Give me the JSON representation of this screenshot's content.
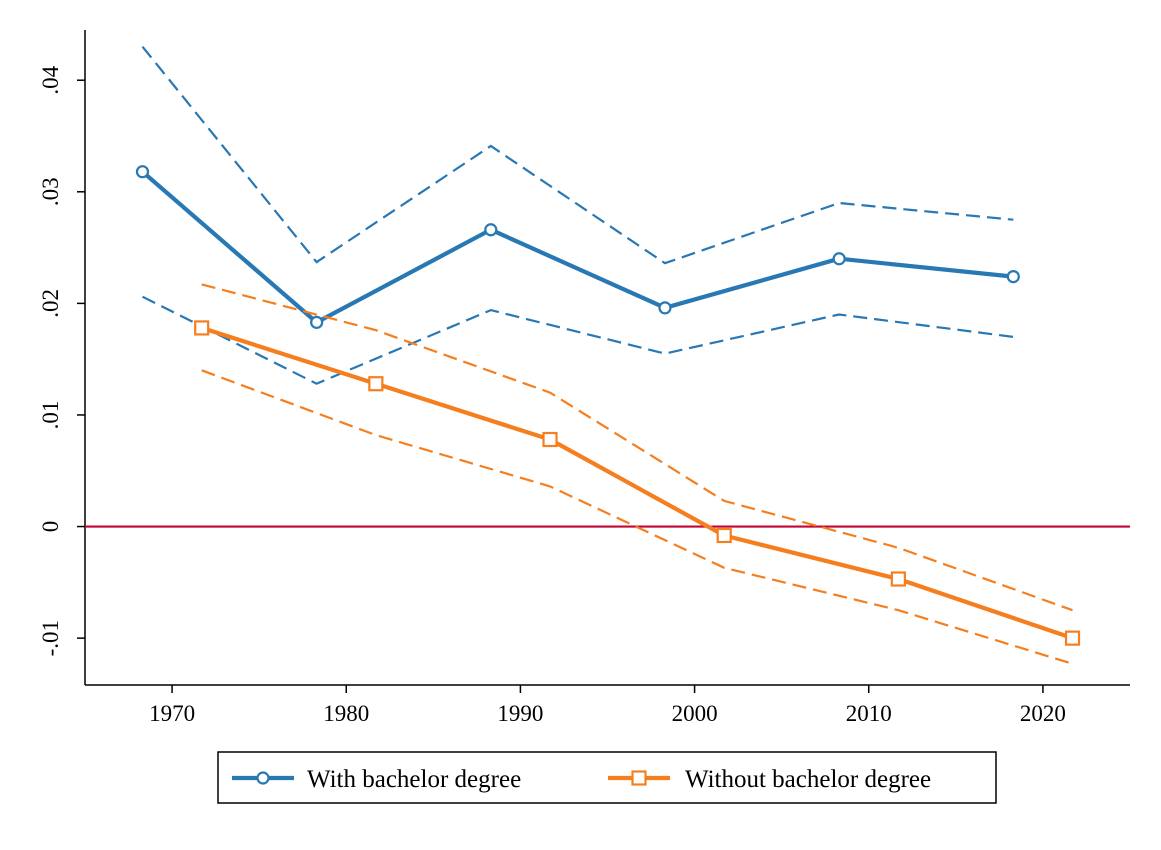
{
  "chart_data": {
    "type": "line",
    "title": "",
    "xlabel": "",
    "ylabel": "",
    "xlim": [
      1965,
      2025
    ],
    "ylim": [
      -0.0142,
      0.0445
    ],
    "x_ticks": [
      1970,
      1980,
      1990,
      2000,
      2010,
      2020
    ],
    "x_tick_labels": [
      "1970",
      "1980",
      "1990",
      "2000",
      "2010",
      "2020"
    ],
    "y_ticks": [
      -0.01,
      0,
      0.01,
      0.02,
      0.03,
      0.04
    ],
    "y_tick_labels": [
      "-.01",
      "0",
      ".01",
      ".02",
      ".03",
      ".04"
    ],
    "grid": false,
    "legend_position": "bottom",
    "reference_line": {
      "y": 0,
      "color": "#c10534"
    },
    "series": [
      {
        "name": "With bachelor degree",
        "color": "#2878b4",
        "marker": "circle",
        "x": [
          1968.3,
          1978.3,
          1988.3,
          1998.3,
          2008.3,
          2018.3
        ],
        "values": [
          0.0318,
          0.0183,
          0.0266,
          0.0196,
          0.024,
          0.0224
        ],
        "ci_upper": [
          0.043,
          0.0237,
          0.0341,
          0.0236,
          0.029,
          0.0275
        ],
        "ci_lower": [
          0.0206,
          0.0128,
          0.0194,
          0.0155,
          0.019,
          0.017
        ]
      },
      {
        "name": "Without bachelor degree",
        "color": "#f57e1f",
        "marker": "square",
        "x": [
          1971.7,
          1981.7,
          1991.7,
          2001.7,
          2011.7,
          2021.7
        ],
        "values": [
          0.0178,
          0.0128,
          0.0078,
          -0.0008,
          -0.0047,
          -0.01
        ],
        "ci_upper": [
          0.0217,
          0.0176,
          0.012,
          0.0023,
          -0.0019,
          -0.0075
        ],
        "ci_lower": [
          0.014,
          0.0082,
          0.0036,
          -0.0037,
          -0.0075,
          -0.0123
        ]
      }
    ]
  }
}
